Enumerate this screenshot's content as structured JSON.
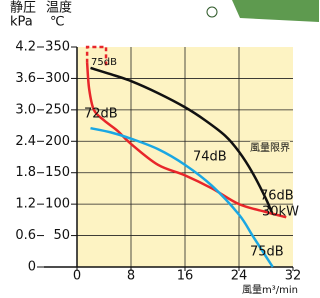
{
  "chart_data": {
    "type": "line",
    "ylabel": "静圧",
    "yunit": "kPa",
    "y2label": "温度",
    "y2unit": "℃",
    "xlabel": "風量m³/min",
    "xlim": [
      0,
      32
    ],
    "xticks": [
      0,
      8,
      16,
      24,
      32
    ],
    "ylim": [
      0,
      4.2
    ],
    "yticks": [
      0,
      0.6,
      1.2,
      1.8,
      2.4,
      {
        "value": 3,
        "label": "3.0"
      },
      3.6,
      4.2
    ],
    "y2lim": [
      0,
      350
    ],
    "y2ticks": [
      50,
      100,
      150,
      200,
      250,
      300,
      350
    ],
    "grid": true,
    "background": "#fdf3c3",
    "series": [
      {
        "color": "#111111",
        "x": [
          2,
          5,
          8,
          12,
          16,
          19,
          22,
          24,
          26,
          28,
          29
        ],
        "values": [
          3.8,
          3.68,
          3.55,
          3.32,
          3.05,
          2.8,
          2.5,
          2.2,
          1.8,
          1.3,
          1.0
        ]
      },
      {
        "color": "#e8262a",
        "x": [
          1.5,
          1.8,
          2.5,
          4,
          6,
          8,
          12,
          16,
          20,
          24,
          28,
          31
        ],
        "values": [
          3.9,
          3.4,
          3.0,
          2.8,
          2.6,
          2.35,
          1.95,
          1.75,
          1.5,
          1.2,
          1.05,
          0.95
        ]
      },
      {
        "color": "#e8262a",
        "dashed": true,
        "x": [
          1.5,
          1.5,
          4.3,
          4.3
        ],
        "values": [
          3.9,
          4.2,
          4.2,
          3.85
        ]
      },
      {
        "color": "#1aa7e3",
        "x": [
          2,
          5,
          8,
          12,
          16,
          20,
          24,
          26,
          28,
          29
        ],
        "values": [
          2.65,
          2.57,
          2.45,
          2.25,
          1.95,
          1.55,
          1.0,
          0.6,
          0.2,
          0
        ]
      }
    ],
    "annotations": [
      "75dB",
      "72dB",
      "74dB",
      "風量限界",
      "76dB",
      "30kW",
      "75dB"
    ]
  }
}
